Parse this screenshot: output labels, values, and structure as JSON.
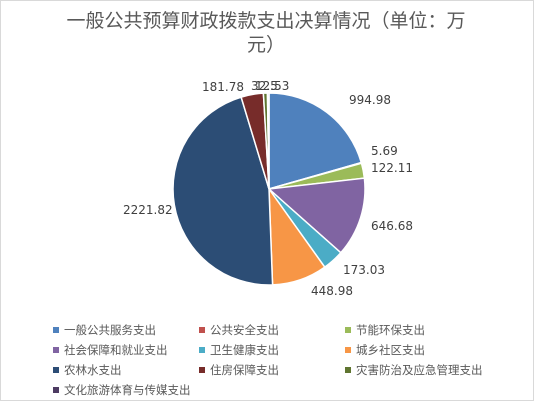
{
  "chart_data": {
    "type": "pie",
    "title": "一般公共预算财政拨款支出决算情况（单位：万元）",
    "title_lines": [
      "一般公共预算财政拨款支出决算情况（单位：万",
      "元）"
    ],
    "categories": [
      "一般公共服务支出",
      "公共安全支出",
      "节能环保支出",
      "社会保障和就业支出",
      "卫生健康支出",
      "城乡社区支出",
      "农林水支出",
      "住房保障支出",
      "灾害防治及应急管理支出",
      "文化旅游体育与传媒支出"
    ],
    "values": [
      994.98,
      5.69,
      122.11,
      646.68,
      173.03,
      448.98,
      2221.82,
      181.78,
      32.5,
      12.53
    ],
    "data_labels": [
      "994.98",
      "5.69",
      "122.11",
      "646.68",
      "173.03",
      "448.98",
      "2221.82",
      "181.78",
      "32.5",
      "12.53"
    ],
    "colors": [
      "#4f81bd",
      "#c0504d",
      "#9bbb59",
      "#8064a2",
      "#4bacc6",
      "#f79646",
      "#2c4d75",
      "#772c2a",
      "#5f7530",
      "#4d3b62"
    ],
    "legend_position": "bottom"
  }
}
